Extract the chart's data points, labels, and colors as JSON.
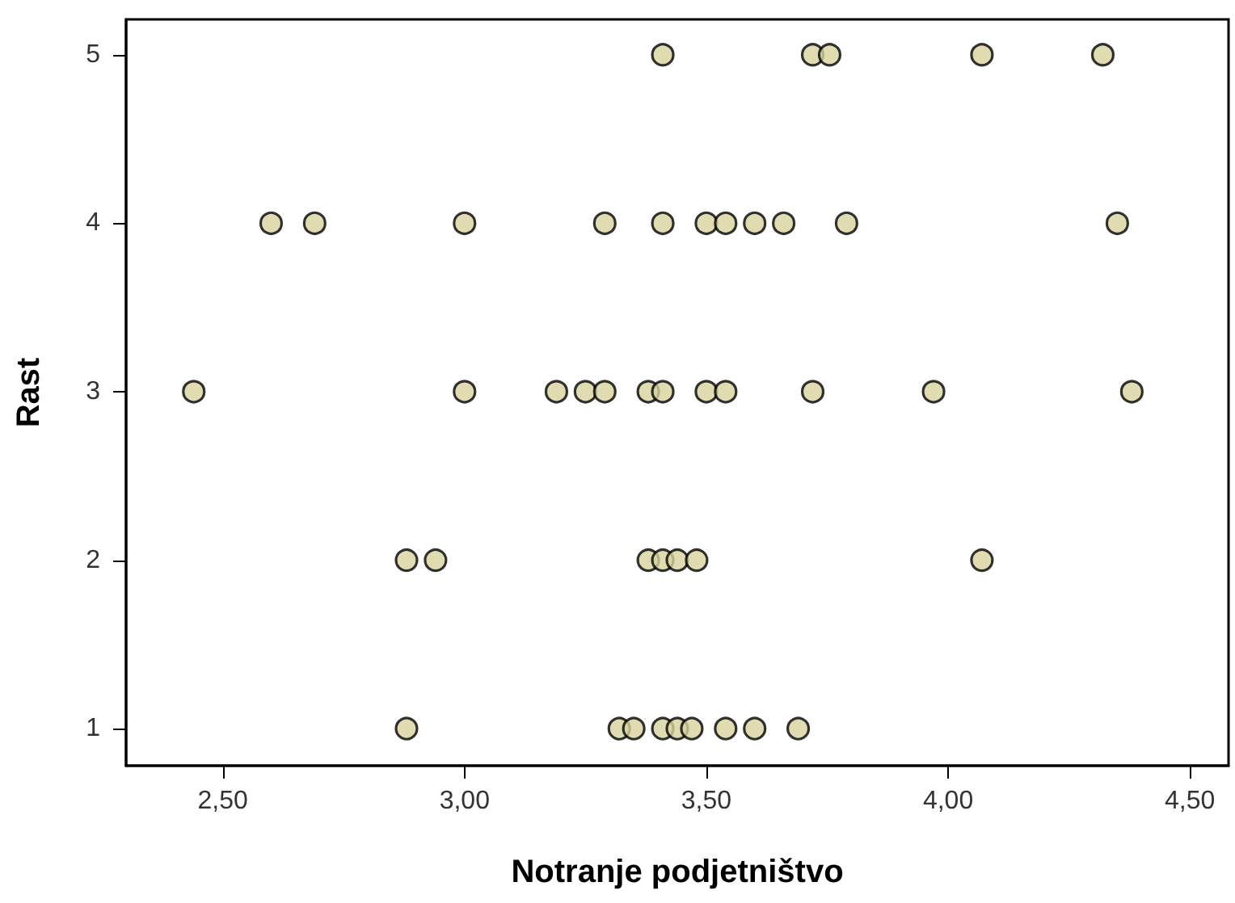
{
  "chart_data": {
    "type": "scatter",
    "xlabel": "Notranje podjetništvo",
    "ylabel": "Rast",
    "series": [
      {
        "color": "#d8d29c",
        "x": [
          3.41,
          3.72,
          3.755,
          4.07,
          4.32,
          2.6,
          2.69,
          3.0,
          3.29,
          3.41,
          3.5,
          3.54,
          3.6,
          3.66,
          3.79,
          4.35,
          2.44,
          3.0,
          3.19,
          3.25,
          3.29,
          3.38,
          3.41,
          3.5,
          3.54,
          3.72,
          3.97,
          4.38,
          2.88,
          2.94,
          3.38,
          3.41,
          3.44,
          3.48,
          4.07,
          2.88,
          3.32,
          3.35,
          3.41,
          3.44,
          3.47,
          3.54,
          3.6,
          3.69
        ],
        "values": [
          5,
          5,
          5,
          5,
          5,
          4,
          4,
          4,
          4,
          4,
          4,
          4,
          4,
          4,
          4,
          4,
          3,
          3,
          3,
          3,
          3,
          3,
          3,
          3,
          3,
          3,
          3,
          3,
          2,
          2,
          2,
          2,
          2,
          2,
          2,
          1,
          1,
          1,
          1,
          1,
          1,
          1,
          1,
          1
        ]
      }
    ],
    "xlim": [
      2.3,
      4.58
    ],
    "ylim": [
      0.78,
      5.21
    ],
    "xticks": [
      {
        "value": 2.5,
        "label": "2,50"
      },
      {
        "value": 3.0,
        "label": "3,00"
      },
      {
        "value": 3.5,
        "label": "3,50"
      },
      {
        "value": 4.0,
        "label": "4,00"
      },
      {
        "value": 4.5,
        "label": "4,50"
      }
    ],
    "yticks": [
      1,
      2,
      3,
      4,
      5
    ],
    "grid": false,
    "marker": "circle"
  }
}
